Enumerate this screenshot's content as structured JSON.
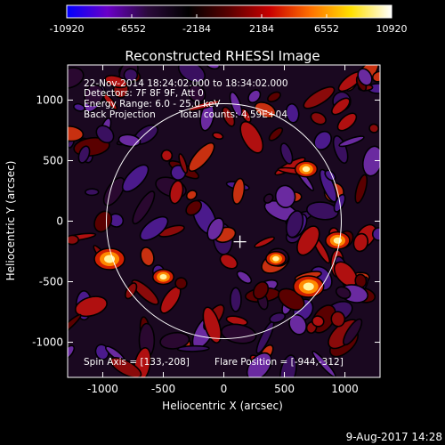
{
  "chart_data": {
    "type": "heatmap",
    "title": "Reconstructed RHESSI Image",
    "xlabel": "Heliocentric X (arcsec)",
    "ylabel": "Heliocentric Y (arcsec)",
    "xlim": [
      -1290,
      1290
    ],
    "ylim": [
      -1290,
      1290
    ],
    "xticks": [
      -1000,
      -500,
      0,
      500,
      1000
    ],
    "yticks": [
      -1000,
      -500,
      0,
      500,
      1000
    ],
    "colorbar": {
      "range": [
        -10920,
        10920
      ],
      "ticks": [
        -10920,
        -6552,
        -2184,
        2184,
        6552,
        10920
      ],
      "colors": [
        "#0000ff",
        "#6a00c8",
        "#2a0a3a",
        "#000000",
        "#5a0000",
        "#c80000",
        "#ff7000",
        "#ffe000",
        "#ffffff"
      ]
    },
    "annotations": {
      "time_range": "22-Nov-2014 18:24:02.000 to 18:34:02.000",
      "detectors": "Detectors: 7F 8F 9F, Att 0",
      "energy": "Energy Range: 6.0 - 25.0 keV",
      "method": "Back Projection",
      "counts": "Total counts: 4.59E+04",
      "spin_axis": "Spin Axis = [133,-208]",
      "flare_position": "Flare Position = [-944,-312]"
    },
    "solar_limb_radius_arcsec": 970,
    "marker": {
      "x": 133,
      "y": -170
    },
    "bright_sources": [
      {
        "x": -944,
        "y": -312,
        "intensity": 10920
      },
      {
        "x": 700,
        "y": -540,
        "intensity": 10920
      },
      {
        "x": 940,
        "y": -160,
        "intensity": 8000
      },
      {
        "x": 680,
        "y": 430,
        "intensity": 7000
      },
      {
        "x": -500,
        "y": -460,
        "intensity": 6500
      },
      {
        "x": 430,
        "y": -310,
        "intensity": 6000
      }
    ]
  },
  "footer": {
    "date": "9-Aug-2017 14:28"
  }
}
